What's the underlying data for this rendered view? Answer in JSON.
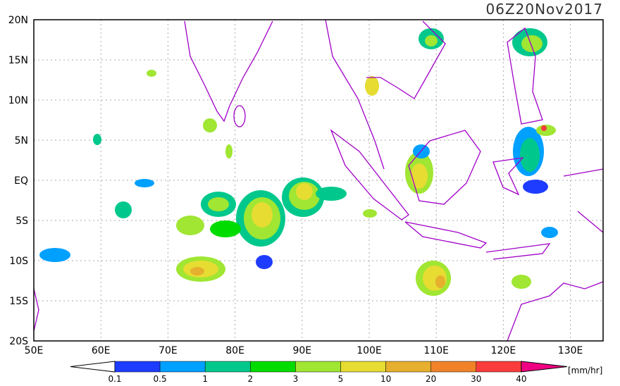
{
  "header": {
    "title": "06Z20Nov2017"
  },
  "map": {
    "lat_labels": [
      "20N",
      "15N",
      "10N",
      "5N",
      "EQ",
      "5S",
      "10S",
      "15S",
      "20S"
    ],
    "lon_labels": [
      "50E",
      "60E",
      "70E",
      "80E",
      "90E",
      "100E",
      "110E",
      "120E",
      "130E"
    ]
  },
  "colorbar": {
    "labels": [
      "0.1",
      "0.5",
      "1",
      "2",
      "3",
      "5",
      "10",
      "20",
      "30",
      "40"
    ],
    "colors": [
      "#1e3cff",
      "#00a0ff",
      "#00c88c",
      "#00dc00",
      "#a0e632",
      "#e6dc32",
      "#e6af2d",
      "#f08228",
      "#fa3c3c"
    ],
    "low_color": "#ffffff",
    "high_color": "#f00082",
    "units": "[mm/hr]"
  }
}
